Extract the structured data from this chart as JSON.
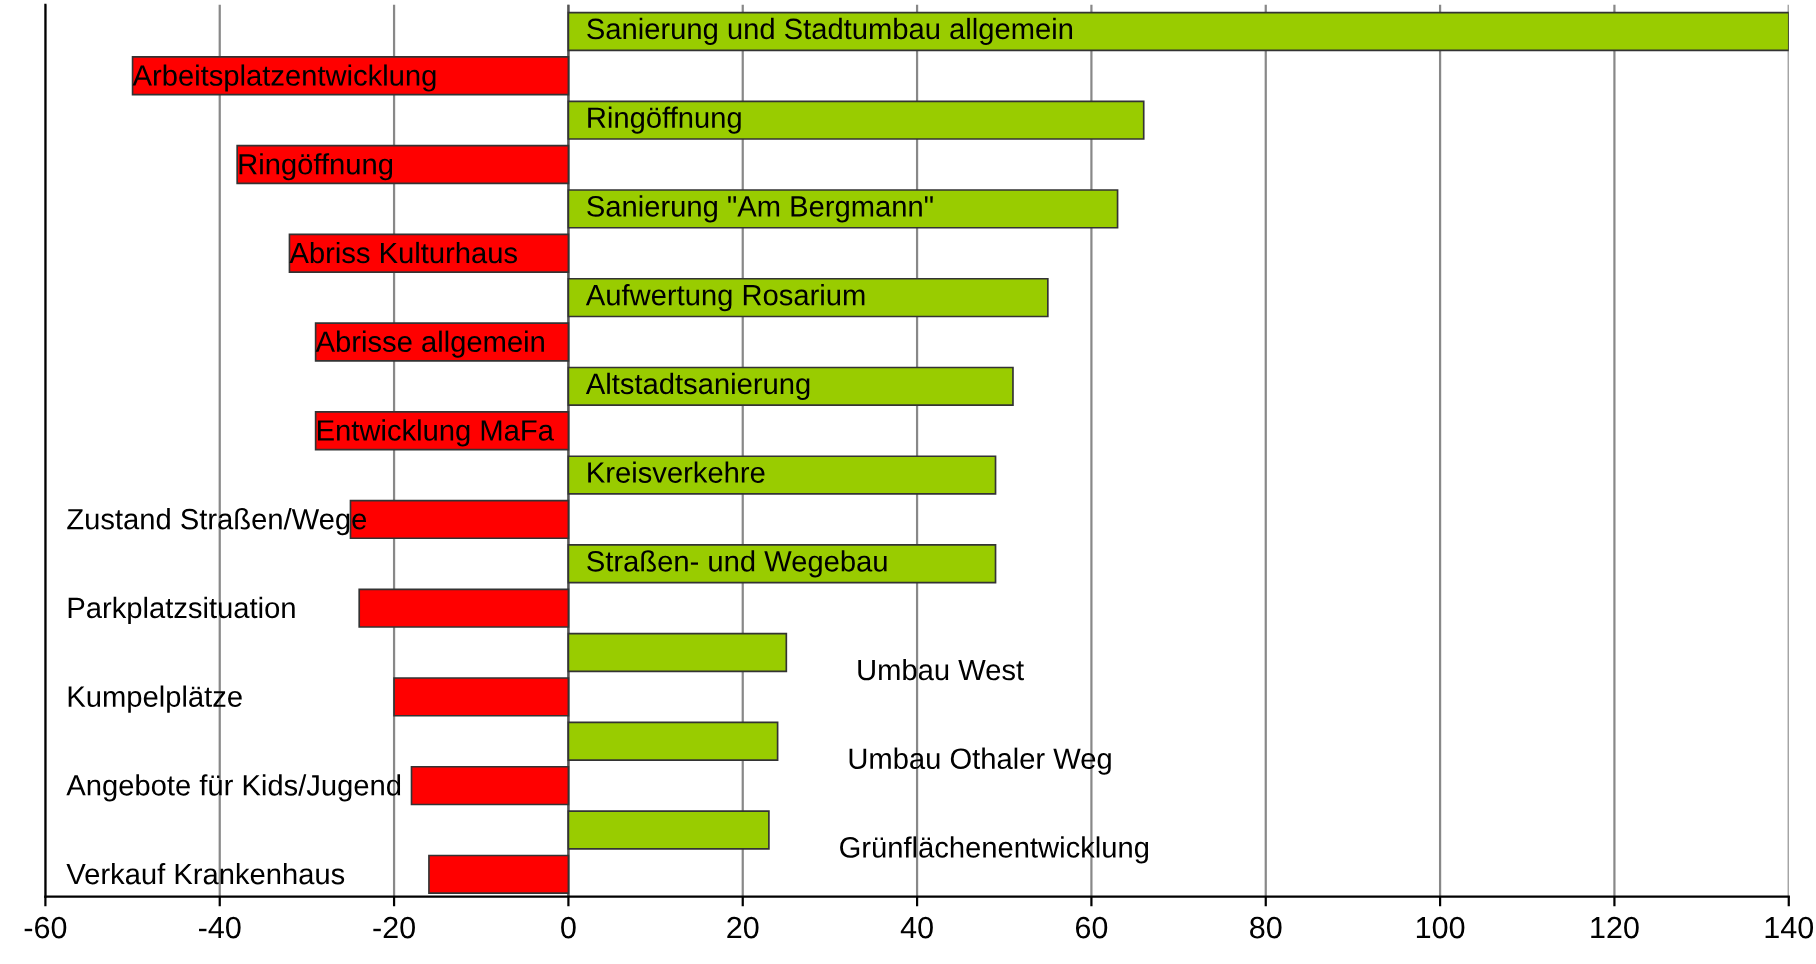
{
  "chart_data": {
    "type": "bar",
    "orientation": "horizontal",
    "categories": [
      "Sanierung und Stadtumbau allgemein",
      "Arbeitsplatzentwicklung",
      "Ringöffnung",
      "Ringöffnung",
      "Sanierung \"Am Bergmann\"",
      "Abriss Kulturhaus",
      "Aufwertung Rosarium",
      "Abrisse allgemein",
      "Altstadtsanierung",
      "Entwicklung MaFa",
      "Kreisverkehre",
      "Zustand Straßen/Wege",
      "Straßen- und Wegebau",
      "Parkplatzsituation",
      "Umbau West",
      "Kumpelplätze",
      "Umbau Othaler Weg",
      "Angebote für Kids/Jugend",
      "Grünflächenentwicklung",
      "Verkauf Krankenhaus"
    ],
    "values": [
      140,
      -50,
      66,
      -38,
      63,
      -32,
      55,
      -29,
      51,
      -29,
      49,
      -25,
      49,
      -24,
      25,
      -20,
      24,
      -18,
      23,
      -16
    ],
    "colors": [
      "#99cc00",
      "#ff0000",
      "#99cc00",
      "#ff0000",
      "#99cc00",
      "#ff0000",
      "#99cc00",
      "#ff0000",
      "#99cc00",
      "#ff0000",
      "#99cc00",
      "#ff0000",
      "#99cc00",
      "#ff0000",
      "#99cc00",
      "#ff0000",
      "#99cc00",
      "#ff0000",
      "#99cc00",
      "#ff0000"
    ],
    "xlim": [
      -60,
      140
    ],
    "xticks": [
      -60,
      -40,
      -20,
      0,
      20,
      40,
      60,
      80,
      100,
      120,
      140
    ],
    "grid": "x",
    "tick_labels": "x"
  }
}
